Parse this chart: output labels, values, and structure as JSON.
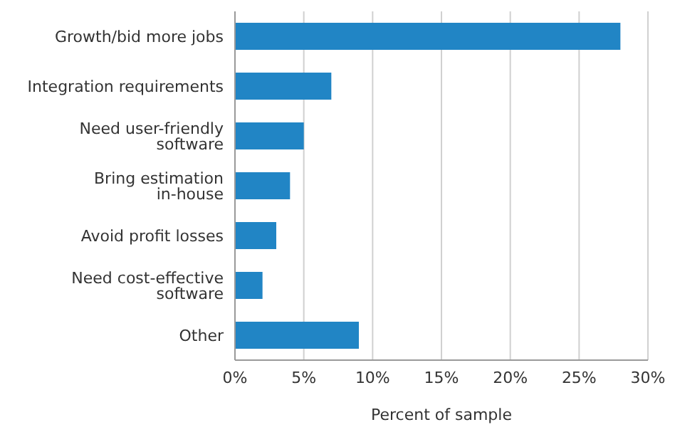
{
  "chart_data": {
    "type": "bar",
    "orientation": "horizontal",
    "xlabel": "Percent of sample",
    "categories": [
      "Growth/bid more jobs",
      "Integration requirements",
      "Need user-friendly software",
      "Bring estimation in-house",
      "Avoid profit losses",
      "Need cost-effective software",
      "Other"
    ],
    "values": [
      28,
      7,
      5,
      4,
      3,
      2,
      9
    ],
    "color": "#2185c5",
    "xlim": [
      0,
      30
    ],
    "xticks": [
      {
        "value": 0,
        "label": "0%"
      },
      {
        "value": 5,
        "label": "5%"
      },
      {
        "value": 10,
        "label": "10%"
      },
      {
        "value": 15,
        "label": "15%"
      },
      {
        "value": 20,
        "label": "20%"
      },
      {
        "value": 25,
        "label": "25%"
      },
      {
        "value": 30,
        "label": "30%"
      }
    ],
    "grid": "x"
  }
}
